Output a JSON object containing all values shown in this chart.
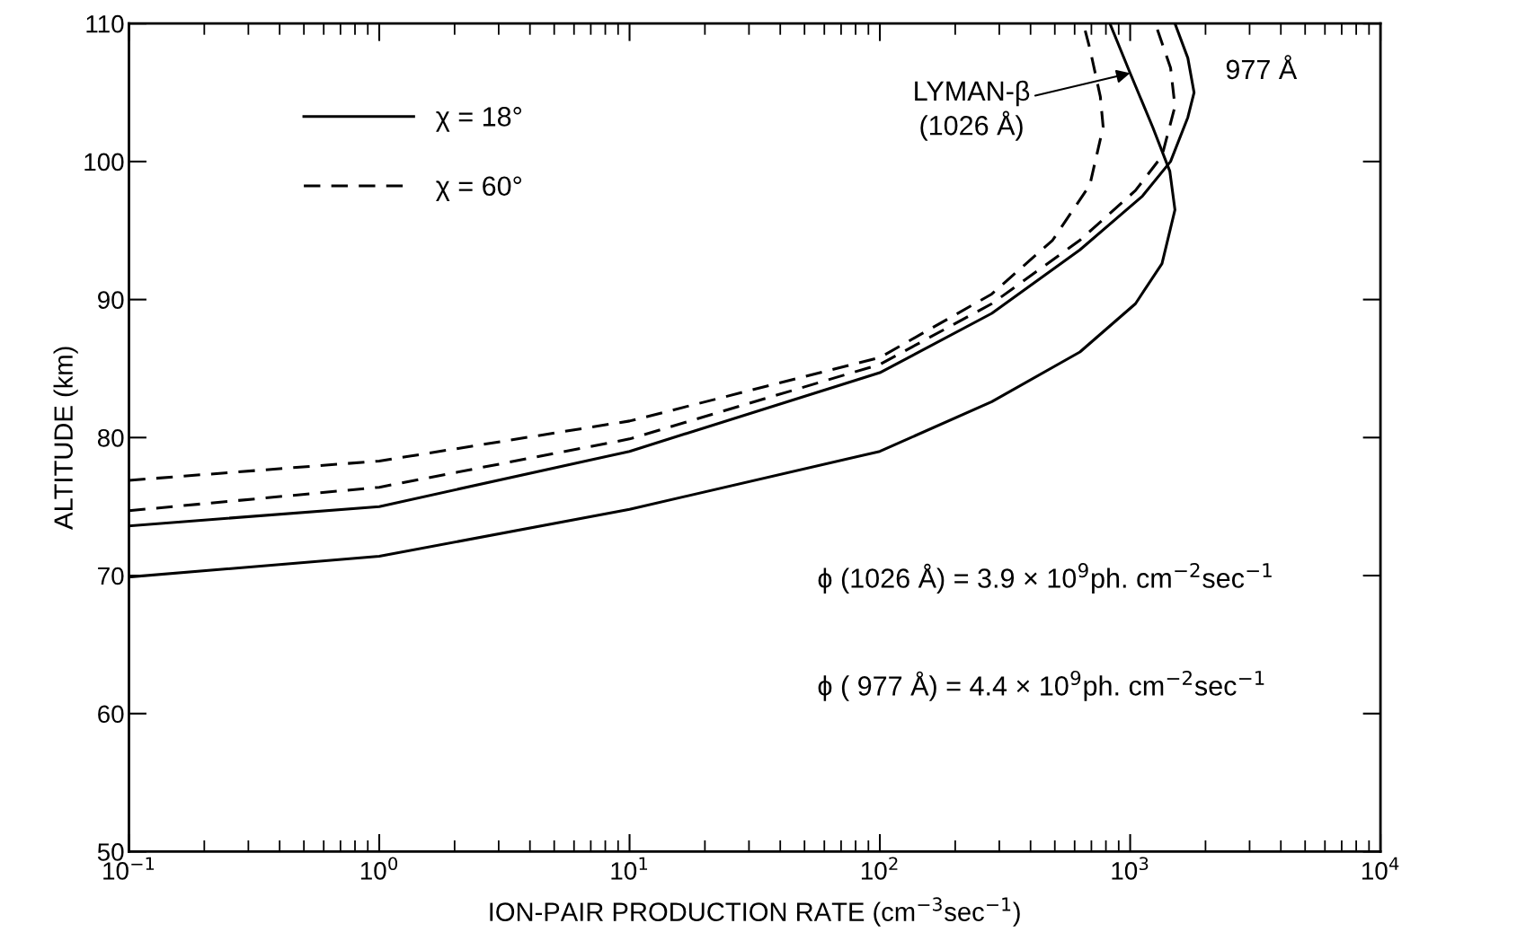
{
  "chart_data": {
    "type": "line",
    "xlabel": "ION-PAIR PRODUCTION RATE (cm$^{−3}$sec$^{−1}$)",
    "ylabel": "ALTITUDE (km)",
    "log": "x",
    "xlim": [
      0.1,
      10000
    ],
    "ylim": [
      50,
      110
    ],
    "xticks": [
      {
        "value": 0.1,
        "label": "10$^{−1}$"
      },
      {
        "value": 1,
        "label": "10$^{0}$"
      },
      {
        "value": 10,
        "label": "10$^{1}$"
      },
      {
        "value": 100,
        "label": "10$^{2}$"
      },
      {
        "value": 1000,
        "label": "10$^{3}$"
      },
      {
        "value": 10000,
        "label": "10$^{4}$"
      }
    ],
    "yticks": [
      50,
      60,
      70,
      80,
      90,
      100,
      110
    ],
    "grid": false,
    "legend": "upper left",
    "marker": "none",
    "series": [
      {
        "name": "χ = 18°",
        "color": "#000000",
        "line_style": "solid",
        "x": [
          0.1,
          1,
          10,
          100,
          280,
          630,
          1050,
          1340,
          1510,
          1440,
          1230,
          1000,
          830
        ],
        "values": [
          69.9,
          71.4,
          74.8,
          79.0,
          82.6,
          86.2,
          89.7,
          92.6,
          96.5,
          99.3,
          102.5,
          106.4,
          110
        ]
      },
      {
        "color": "#000000",
        "line_style": "solid",
        "x": [
          0.1,
          1,
          10,
          100,
          280,
          630,
          1120,
          1450,
          1700,
          1800,
          1700,
          1510
        ],
        "values": [
          73.6,
          75.0,
          79.0,
          84.7,
          89.0,
          93.6,
          97.5,
          100.0,
          103.2,
          105.0,
          107.5,
          110
        ]
      },
      {
        "name": "χ = 60°",
        "color": "#000000",
        "line_style": "dashed",
        "x": [
          0.1,
          1,
          10,
          100,
          280,
          490,
          690,
          780,
          760,
          690,
          650
        ],
        "values": [
          76.9,
          78.3,
          81.2,
          85.8,
          90.4,
          94.3,
          98.3,
          102.5,
          104.7,
          108.2,
          110
        ]
      },
      {
        "color": "#000000",
        "line_style": "dashed",
        "x": [
          0.1,
          1,
          10,
          100,
          280,
          630,
          1050,
          1340,
          1510,
          1450,
          1260
        ],
        "values": [
          74.7,
          76.4,
          79.9,
          85.3,
          89.7,
          94.3,
          97.9,
          100.4,
          104.0,
          106.8,
          110
        ]
      }
    ],
    "annotations": [
      {
        "text": "977 Å",
        "x": 1800,
        "y": 106.5
      },
      {
        "text": "LYMAN-β\n(1026 Å)",
        "x": 1000,
        "y": 106.4
      },
      "ϕ (1026 Å) = 3.9 × 10$^{9}$ph. cm$^{−2}$sec$^{−1}$",
      "ϕ ( 977 Å) = 4.4 × 10$^{9}$ph. cm$^{−2}$sec$^{−1}$"
    ]
  }
}
